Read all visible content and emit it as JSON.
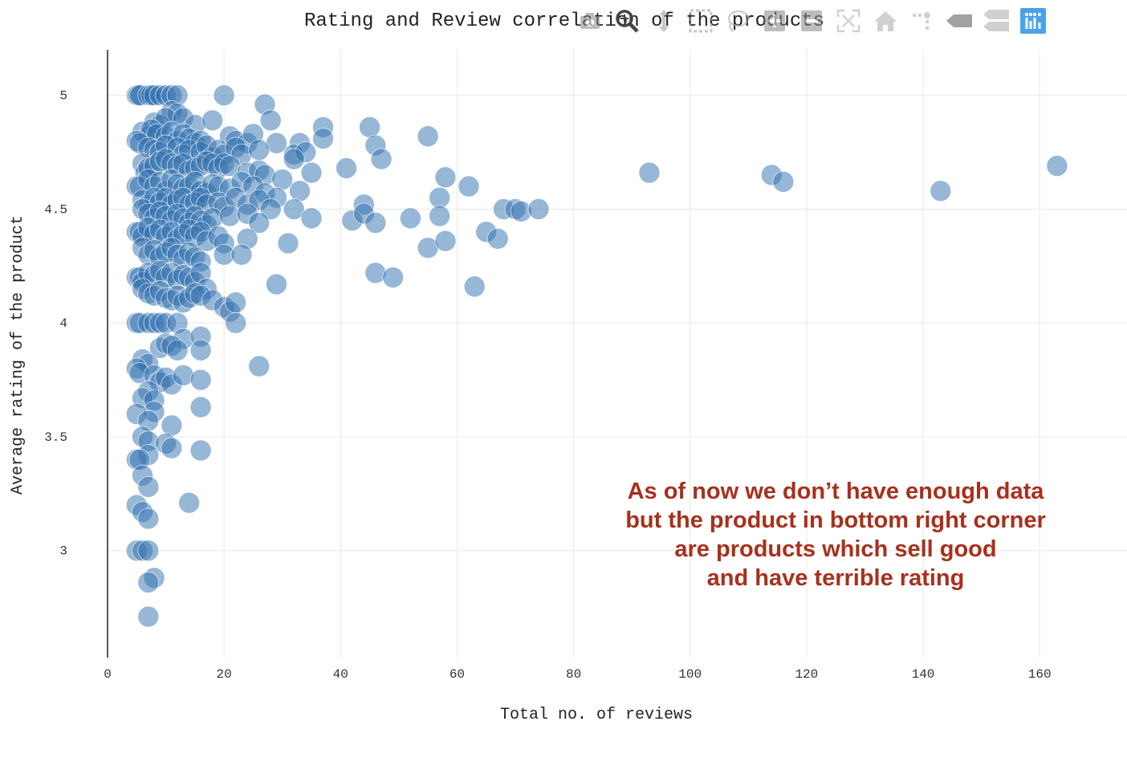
{
  "chart_data": {
    "type": "scatter",
    "title": "Rating and Review correlation of the products",
    "xlabel": "Total no. of reviews",
    "ylabel": "Average rating of the product",
    "xlim": [
      0,
      175
    ],
    "ylim": [
      2.53,
      5.2
    ],
    "xticks": [
      "0",
      "20",
      "40",
      "60",
      "80",
      "100",
      "120",
      "140",
      "160"
    ],
    "yticks": [
      "3",
      "3.5",
      "4",
      "4.5",
      "5"
    ],
    "grid": true,
    "marker_color": "#2f6fad",
    "annotation": [
      "As of now we don’t have enough data",
      "but the product in bottom right corner",
      "are products which sell good",
      "and have terrible rating"
    ],
    "annotation_color": "#a8301c",
    "points": [
      [
        5,
        5
      ],
      [
        5.3,
        5
      ],
      [
        5.6,
        5
      ],
      [
        7,
        5
      ],
      [
        7.5,
        5
      ],
      [
        8,
        5
      ],
      [
        9,
        5
      ],
      [
        10,
        5
      ],
      [
        11,
        5
      ],
      [
        12,
        5
      ],
      [
        20,
        5
      ],
      [
        27,
        4.96
      ],
      [
        11,
        4.93
      ],
      [
        12,
        4.92
      ],
      [
        8,
        4.88
      ],
      [
        9,
        4.87
      ],
      [
        10,
        4.9
      ],
      [
        13,
        4.9
      ],
      [
        15,
        4.87
      ],
      [
        18,
        4.89
      ],
      [
        28,
        4.89
      ],
      [
        37,
        4.86
      ],
      [
        45,
        4.86
      ],
      [
        6,
        4.84
      ],
      [
        7,
        4.82
      ],
      [
        7.5,
        4.85
      ],
      [
        8.5,
        4.83
      ],
      [
        10,
        4.82
      ],
      [
        11,
        4.84
      ],
      [
        12,
        4.8
      ],
      [
        13,
        4.83
      ],
      [
        14,
        4.81
      ],
      [
        15,
        4.79
      ],
      [
        16,
        4.8
      ],
      [
        21,
        4.82
      ],
      [
        22,
        4.8
      ],
      [
        24,
        4.79
      ],
      [
        25,
        4.83
      ],
      [
        29,
        4.79
      ],
      [
        33,
        4.79
      ],
      [
        37,
        4.81
      ],
      [
        46,
        4.78
      ],
      [
        55,
        4.82
      ],
      [
        5,
        4.8
      ],
      [
        5.5,
        4.79
      ],
      [
        7,
        4.77
      ],
      [
        8,
        4.76
      ],
      [
        9,
        4.75
      ],
      [
        10,
        4.78
      ],
      [
        12,
        4.77
      ],
      [
        13,
        4.74
      ],
      [
        14,
        4.76
      ],
      [
        16,
        4.75
      ],
      [
        17,
        4.78
      ],
      [
        18,
        4.73
      ],
      [
        19,
        4.76
      ],
      [
        20,
        4.74
      ],
      [
        22,
        4.77
      ],
      [
        23,
        4.74
      ],
      [
        26,
        4.76
      ],
      [
        32,
        4.74
      ],
      [
        34,
        4.75
      ],
      [
        47,
        4.72
      ],
      [
        6,
        4.7
      ],
      [
        6.5,
        4.66
      ],
      [
        7,
        4.68
      ],
      [
        8,
        4.69
      ],
      [
        9,
        4.71
      ],
      [
        10,
        4.72
      ],
      [
        11,
        4.7
      ],
      [
        12,
        4.69
      ],
      [
        13,
        4.7
      ],
      [
        14,
        4.67
      ],
      [
        15,
        4.68
      ],
      [
        16,
        4.69
      ],
      [
        17,
        4.71
      ],
      [
        18,
        4.7
      ],
      [
        19,
        4.68
      ],
      [
        20,
        4.7
      ],
      [
        21,
        4.69
      ],
      [
        24,
        4.66
      ],
      [
        26,
        4.67
      ],
      [
        27,
        4.65
      ],
      [
        30,
        4.63
      ],
      [
        32,
        4.72
      ],
      [
        35,
        4.66
      ],
      [
        41,
        4.68
      ],
      [
        58,
        4.64
      ],
      [
        93,
        4.66
      ],
      [
        114,
        4.65
      ],
      [
        116,
        4.62
      ],
      [
        163,
        4.69
      ],
      [
        5,
        4.6
      ],
      [
        5.5,
        4.6
      ],
      [
        7,
        4.63
      ],
      [
        8,
        4.6
      ],
      [
        9,
        4.62
      ],
      [
        10,
        4.58
      ],
      [
        11,
        4.63
      ],
      [
        12,
        4.61
      ],
      [
        13,
        4.59
      ],
      [
        14,
        4.6
      ],
      [
        15,
        4.62
      ],
      [
        16,
        4.58
      ],
      [
        17,
        4.57
      ],
      [
        18,
        4.61
      ],
      [
        19,
        4.6
      ],
      [
        21,
        4.59
      ],
      [
        23,
        4.62
      ],
      [
        25,
        4.6
      ],
      [
        27,
        4.57
      ],
      [
        29,
        4.55
      ],
      [
        33,
        4.58
      ],
      [
        57,
        4.55
      ],
      [
        62,
        4.6
      ],
      [
        143,
        4.58
      ],
      [
        6,
        4.54
      ],
      [
        7,
        4.52
      ],
      [
        8,
        4.55
      ],
      [
        9,
        4.53
      ],
      [
        10,
        4.55
      ],
      [
        11,
        4.52
      ],
      [
        12,
        4.54
      ],
      [
        13,
        4.55
      ],
      [
        14,
        4.52
      ],
      [
        15,
        4.53
      ],
      [
        16,
        4.55
      ],
      [
        17,
        4.52
      ],
      [
        19,
        4.53
      ],
      [
        20,
        4.51
      ],
      [
        22,
        4.55
      ],
      [
        24,
        4.52
      ],
      [
        26,
        4.54
      ],
      [
        28,
        4.5
      ],
      [
        32,
        4.5
      ],
      [
        44,
        4.52
      ],
      [
        68,
        4.5
      ],
      [
        70,
        4.5
      ],
      [
        71,
        4.49
      ],
      [
        74,
        4.5
      ],
      [
        6,
        4.5
      ],
      [
        7,
        4.48
      ],
      [
        8,
        4.46
      ],
      [
        9,
        4.49
      ],
      [
        10,
        4.47
      ],
      [
        11,
        4.45
      ],
      [
        12,
        4.48
      ],
      [
        13,
        4.46
      ],
      [
        14,
        4.44
      ],
      [
        15,
        4.47
      ],
      [
        16,
        4.45
      ],
      [
        17,
        4.43
      ],
      [
        18,
        4.46
      ],
      [
        21,
        4.47
      ],
      [
        24,
        4.48
      ],
      [
        26,
        4.44
      ],
      [
        35,
        4.46
      ],
      [
        42,
        4.45
      ],
      [
        44,
        4.48
      ],
      [
        46,
        4.44
      ],
      [
        52,
        4.46
      ],
      [
        57,
        4.47
      ],
      [
        5,
        4.4
      ],
      [
        5.5,
        4.4
      ],
      [
        6,
        4.38
      ],
      [
        7,
        4.42
      ],
      [
        8,
        4.39
      ],
      [
        9,
        4.41
      ],
      [
        10,
        4.38
      ],
      [
        11,
        4.4
      ],
      [
        12,
        4.37
      ],
      [
        13,
        4.39
      ],
      [
        14,
        4.41
      ],
      [
        15,
        4.38
      ],
      [
        16,
        4.4
      ],
      [
        17,
        4.36
      ],
      [
        19,
        4.38
      ],
      [
        20,
        4.35
      ],
      [
        24,
        4.37
      ],
      [
        31,
        4.35
      ],
      [
        55,
        4.33
      ],
      [
        58,
        4.36
      ],
      [
        65,
        4.4
      ],
      [
        67,
        4.37
      ],
      [
        6,
        4.33
      ],
      [
        7,
        4.3
      ],
      [
        8,
        4.32
      ],
      [
        9,
        4.29
      ],
      [
        10,
        4.31
      ],
      [
        11,
        4.33
      ],
      [
        12,
        4.3
      ],
      [
        13,
        4.28
      ],
      [
        14,
        4.31
      ],
      [
        15,
        4.29
      ],
      [
        16,
        4.27
      ],
      [
        20,
        4.3
      ],
      [
        23,
        4.3
      ],
      [
        5,
        4.2
      ],
      [
        5.5,
        4.2
      ],
      [
        6,
        4.18
      ],
      [
        7,
        4.22
      ],
      [
        8,
        4.21
      ],
      [
        9,
        4.23
      ],
      [
        10,
        4.2
      ],
      [
        11,
        4.22
      ],
      [
        12,
        4.19
      ],
      [
        13,
        4.21
      ],
      [
        14,
        4.2
      ],
      [
        15,
        4.18
      ],
      [
        16,
        4.22
      ],
      [
        17,
        4.15
      ],
      [
        29,
        4.17
      ],
      [
        46,
        4.22
      ],
      [
        49,
        4.2
      ],
      [
        63,
        4.16
      ],
      [
        6,
        4.15
      ],
      [
        7,
        4.13
      ],
      [
        8,
        4.12
      ],
      [
        9,
        4.14
      ],
      [
        10,
        4.11
      ],
      [
        11,
        4.1
      ],
      [
        12,
        4.12
      ],
      [
        13,
        4.09
      ],
      [
        14,
        4.11
      ],
      [
        15,
        4.13
      ],
      [
        16,
        4.12
      ],
      [
        18,
        4.1
      ],
      [
        20,
        4.07
      ],
      [
        21,
        4.05
      ],
      [
        22,
        4.09
      ],
      [
        5,
        4
      ],
      [
        5.5,
        4
      ],
      [
        7,
        4
      ],
      [
        8,
        4
      ],
      [
        9,
        4
      ],
      [
        10,
        4
      ],
      [
        12,
        4
      ],
      [
        22,
        4
      ],
      [
        13,
        3.93
      ],
      [
        16,
        3.94
      ],
      [
        16,
        3.88
      ],
      [
        9,
        3.89
      ],
      [
        10,
        3.91
      ],
      [
        11,
        3.9
      ],
      [
        12,
        3.88
      ],
      [
        6,
        3.84
      ],
      [
        7,
        3.82
      ],
      [
        26,
        3.81
      ],
      [
        5,
        3.8
      ],
      [
        5.5,
        3.78
      ],
      [
        8,
        3.77
      ],
      [
        9,
        3.74
      ],
      [
        10,
        3.76
      ],
      [
        11,
        3.73
      ],
      [
        13,
        3.77
      ],
      [
        16,
        3.75
      ],
      [
        7,
        3.7
      ],
      [
        6,
        3.67
      ],
      [
        8,
        3.66
      ],
      [
        16,
        3.63
      ],
      [
        8,
        3.61
      ],
      [
        5,
        3.6
      ],
      [
        7,
        3.57
      ],
      [
        11,
        3.55
      ],
      [
        6,
        3.5
      ],
      [
        7,
        3.48
      ],
      [
        10,
        3.47
      ],
      [
        11,
        3.45
      ],
      [
        16,
        3.44
      ],
      [
        7,
        3.42
      ],
      [
        5,
        3.4
      ],
      [
        5.5,
        3.4
      ],
      [
        6,
        3.33
      ],
      [
        7,
        3.28
      ],
      [
        14,
        3.21
      ],
      [
        5,
        3.2
      ],
      [
        6,
        3.17
      ],
      [
        7,
        3.14
      ],
      [
        5,
        3
      ],
      [
        6,
        3
      ],
      [
        7,
        3
      ],
      [
        8,
        2.88
      ],
      [
        7,
        2.86
      ],
      [
        7,
        2.71
      ]
    ]
  },
  "modebar": {
    "icons": [
      "camera-icon",
      "zoom-icon",
      "pan-icon",
      "box-select-icon",
      "lasso-select-icon",
      "zoom-in-icon",
      "zoom-out-icon",
      "autoscale-icon",
      "reset-axes-icon",
      "spike-lines-icon",
      "hover-closest-icon",
      "hover-compare-icon",
      "plotly-logo-icon"
    ]
  }
}
